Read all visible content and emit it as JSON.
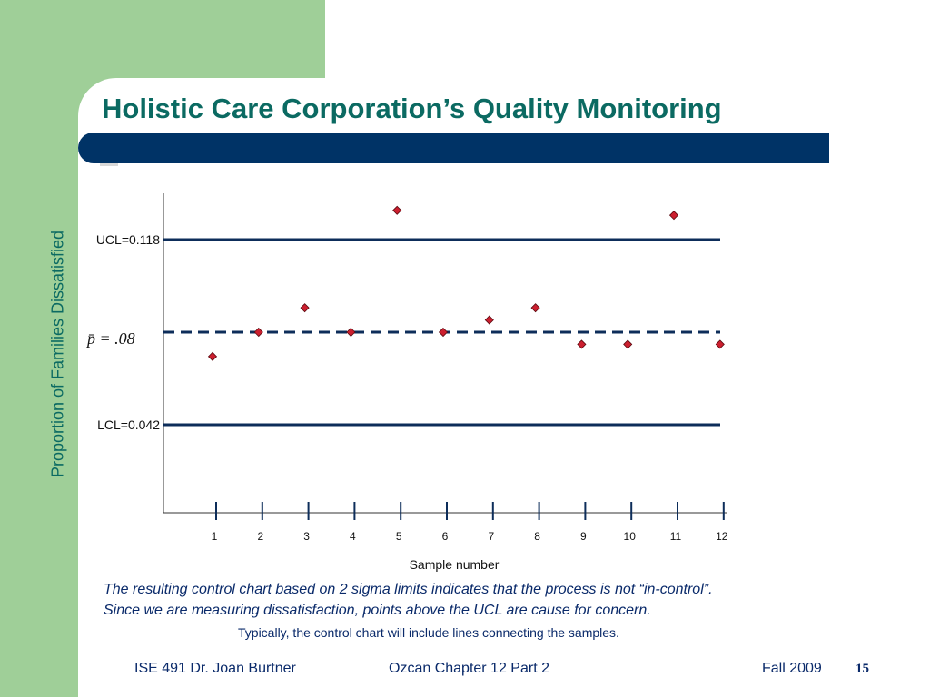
{
  "slide": {
    "title": "Holistic Care Corporation’s Quality Monitoring",
    "note1": "The resulting control chart based on 2 sigma limits indicates that the process is not “in-control”.",
    "note2": "Since we are measuring dissatisfaction, points above the UCL are cause for concern.",
    "note3": "Typically, the control chart will include lines connecting the samples.",
    "footer": {
      "course": "ISE 491  Dr. Joan Burtner",
      "chapter": "Ozcan Chapter 12  Part 2",
      "term": "Fall 2009",
      "page": "15"
    }
  },
  "colors": {
    "green": "#9fcf98",
    "title": "#0b6a62",
    "bar": "#003366",
    "line": "#0d2d5a",
    "marker": "#cc1f2f",
    "text": "#0a2a6a"
  },
  "chart_data": {
    "type": "scatter",
    "xlabel": "Sample number",
    "ylabel": "Proportion of Families Dissatisfied",
    "categories": [
      "1",
      "2",
      "3",
      "4",
      "5",
      "6",
      "7",
      "8",
      "9",
      "10",
      "11",
      "12"
    ],
    "x": [
      1,
      2,
      3,
      4,
      5,
      6,
      7,
      8,
      9,
      10,
      11,
      12
    ],
    "values": [
      0.07,
      0.08,
      0.09,
      0.08,
      0.13,
      0.08,
      0.085,
      0.09,
      0.075,
      0.075,
      0.128,
      0.075
    ],
    "ucl": {
      "label": "UCL=0.118",
      "value": 0.118
    },
    "center": {
      "label": "p̄ = .08",
      "value": 0.08
    },
    "lcl": {
      "label": "LCL=0.042",
      "value": 0.042
    },
    "grid": false
  }
}
